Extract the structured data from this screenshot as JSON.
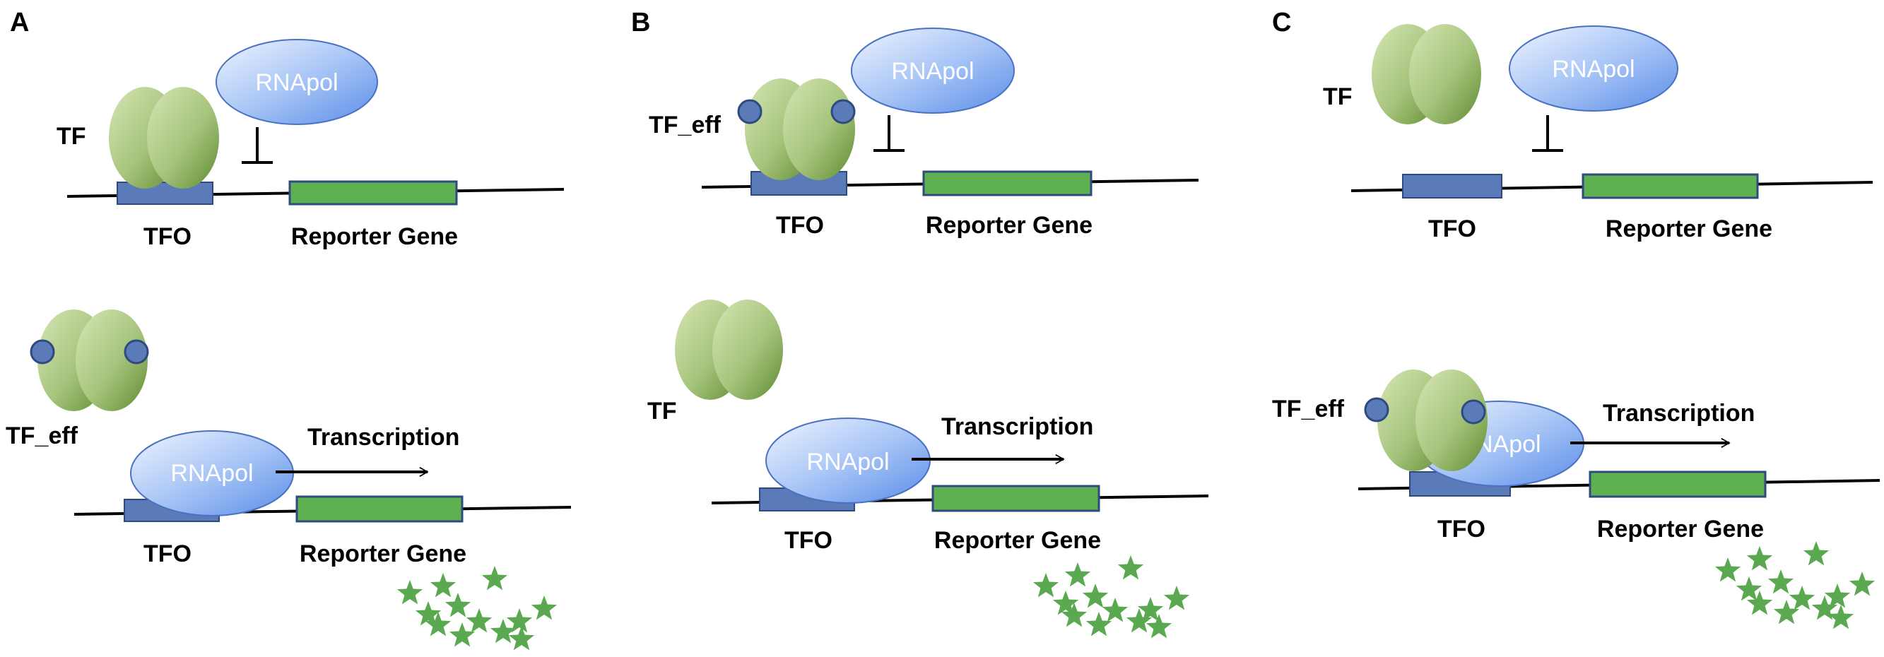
{
  "colors": {
    "tf_light": "#c8dca0",
    "tf_dark": "#5f8a30",
    "rnapol_light": "#e6f0ff",
    "rnapol_dark": "#5b8de8",
    "tfo_box": "#5a7ab8",
    "reporter_box": "#5fb050",
    "effector_dot": "#5a7ab8",
    "star": "#5aa84f",
    "dna_line": "#000000"
  },
  "icons": {
    "transcription_factor": "tf-dimer-icon",
    "polymerase": "rnapol-ellipse-icon",
    "effector": "effector-dot-icon",
    "reporter_output": "star-icon",
    "inhibition": "inhibition-tbar-icon",
    "transcription": "right-arrow-icon"
  },
  "panels": [
    {
      "letter": "A",
      "top": {
        "tf_label": "TF",
        "rnapol_label": "RNApol",
        "tfo_label": "TFO",
        "reporter_label": "Reporter Gene",
        "tf_has_effector": false,
        "tf_bound": true,
        "inhibited": true
      },
      "bottom": {
        "tf_label": "TF_eff",
        "rnapol_label": "RNApol",
        "transcription_label": "Transcription",
        "tfo_label": "TFO",
        "reporter_label": "Reporter Gene",
        "tf_has_effector": true,
        "tf_bound": false,
        "expressed": true
      }
    },
    {
      "letter": "B",
      "top": {
        "tf_label": "TF_eff",
        "rnapol_label": "RNApol",
        "tfo_label": "TFO",
        "reporter_label": "Reporter Gene",
        "tf_has_effector": true,
        "tf_bound": true,
        "inhibited": true
      },
      "bottom": {
        "tf_label": "TF",
        "rnapol_label": "RNApol",
        "transcription_label": "Transcription",
        "tfo_label": "TFO",
        "reporter_label": "Reporter Gene",
        "tf_has_effector": false,
        "tf_bound": false,
        "expressed": true
      }
    },
    {
      "letter": "C",
      "top": {
        "tf_label": "TF",
        "rnapol_label": "RNApol",
        "tfo_label": "TFO",
        "reporter_label": "Reporter Gene",
        "tf_has_effector": false,
        "tf_bound": false,
        "inhibited": true
      },
      "bottom": {
        "tf_label": "TF_eff",
        "rnapol_label": "RNApol",
        "transcription_label": "Transcription",
        "tfo_label": "TFO",
        "reporter_label": "Reporter Gene",
        "tf_has_effector": true,
        "tf_bound": true,
        "expressed": true
      }
    }
  ]
}
